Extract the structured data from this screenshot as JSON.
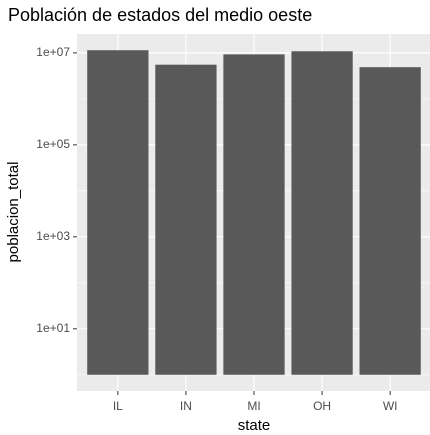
{
  "chart_data": {
    "type": "bar",
    "title": "Población de estados del medio oeste",
    "x_label": "state",
    "y_label": "poblacion_total",
    "categories": [
      "IL",
      "IN",
      "MI",
      "OH",
      "WI"
    ],
    "values": [
      11430602,
      5544159,
      9295297,
      10847115,
      4891769
    ],
    "color": "#595959",
    "log_y": true,
    "grid": true,
    "ylim": [
      0.4436,
      25770000
    ],
    "yticks": [
      {
        "value": 10,
        "label": "1e+01"
      },
      {
        "value": 1000,
        "label": "1e+03"
      },
      {
        "value": 100000,
        "label": "1e+05"
      },
      {
        "value": 10000000,
        "label": "1e+07"
      }
    ]
  }
}
